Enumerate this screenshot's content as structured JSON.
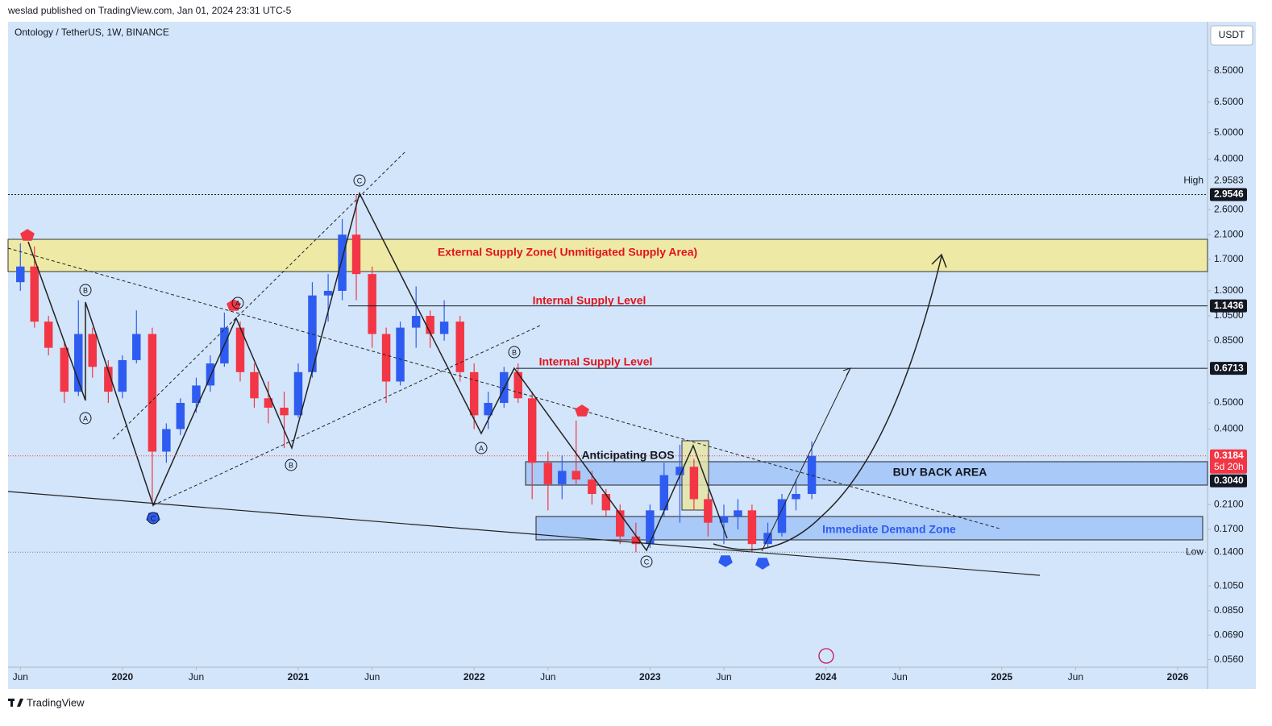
{
  "header": {
    "publisher": "weslad published on TradingView.com, Jan 01, 2024 23:31 UTC-5",
    "footer": "TradingView"
  },
  "chart_data": {
    "type": "candlestick",
    "title": "Ontology / TetherUS, 1W, BINANCE",
    "currency": "USDT",
    "log_scale": true,
    "up_color": "#2f5cf0",
    "down_color": "#f23645",
    "x": [
      2019.42,
      2019.5,
      2019.58,
      2019.67,
      2019.75,
      2019.83,
      2019.92,
      2020.0,
      2020.08,
      2020.17,
      2020.25,
      2020.33,
      2020.42,
      2020.5,
      2020.58,
      2020.67,
      2020.75,
      2020.83,
      2020.92,
      2021.0,
      2021.08,
      2021.17,
      2021.25,
      2021.33,
      2021.42,
      2021.5,
      2021.58,
      2021.67,
      2021.75,
      2021.83,
      2021.92,
      2022.0,
      2022.08,
      2022.17,
      2022.25,
      2022.33,
      2022.42,
      2022.5,
      2022.58,
      2022.67,
      2022.75,
      2022.83,
      2022.92,
      2023.0,
      2023.08,
      2023.17,
      2023.25,
      2023.33,
      2023.42,
      2023.5,
      2023.58,
      2023.67,
      2023.75,
      2023.83,
      2023.92
    ],
    "open": [
      1.4,
      1.6,
      1.0,
      0.8,
      0.55,
      0.9,
      0.68,
      0.55,
      0.72,
      0.9,
      0.33,
      0.4,
      0.5,
      0.58,
      0.7,
      0.95,
      0.65,
      0.52,
      0.48,
      0.45,
      0.65,
      1.25,
      1.3,
      2.1,
      1.5,
      0.9,
      0.6,
      0.95,
      1.05,
      0.9,
      1.0,
      0.65,
      0.45,
      0.5,
      0.65,
      0.52,
      0.3,
      0.25,
      0.28,
      0.26,
      0.23,
      0.2,
      0.16,
      0.15,
      0.2,
      0.27,
      0.29,
      0.22,
      0.18,
      0.19,
      0.2,
      0.15,
      0.165,
      0.22,
      0.23
    ],
    "high": [
      1.95,
      1.9,
      1.05,
      0.85,
      1.2,
      0.95,
      0.72,
      0.75,
      1.1,
      0.95,
      0.42,
      0.52,
      0.62,
      0.75,
      1.08,
      1.0,
      0.7,
      0.6,
      0.55,
      0.7,
      1.4,
      1.5,
      2.4,
      2.95,
      1.6,
      0.95,
      1.0,
      1.35,
      1.1,
      1.2,
      1.05,
      0.7,
      0.55,
      0.68,
      0.7,
      0.55,
      0.33,
      0.32,
      0.43,
      0.28,
      0.24,
      0.21,
      0.18,
      0.21,
      0.3,
      0.35,
      0.31,
      0.23,
      0.21,
      0.22,
      0.21,
      0.18,
      0.23,
      0.26,
      0.36
    ],
    "low": [
      1.3,
      0.95,
      0.75,
      0.5,
      0.53,
      0.62,
      0.5,
      0.52,
      0.7,
      0.21,
      0.3,
      0.38,
      0.46,
      0.55,
      0.68,
      0.6,
      0.48,
      0.42,
      0.34,
      0.44,
      0.62,
      1.0,
      1.2,
      1.2,
      0.8,
      0.5,
      0.58,
      0.8,
      0.8,
      0.85,
      0.6,
      0.4,
      0.4,
      0.48,
      0.5,
      0.22,
      0.2,
      0.22,
      0.25,
      0.21,
      0.19,
      0.15,
      0.14,
      0.145,
      0.19,
      0.18,
      0.2,
      0.16,
      0.15,
      0.17,
      0.14,
      0.145,
      0.16,
      0.2,
      0.22
    ],
    "close": [
      1.6,
      1.0,
      0.8,
      0.55,
      0.9,
      0.68,
      0.55,
      0.72,
      0.9,
      0.33,
      0.4,
      0.5,
      0.58,
      0.7,
      0.95,
      0.65,
      0.52,
      0.48,
      0.45,
      0.65,
      1.25,
      1.3,
      2.1,
      1.5,
      0.9,
      0.6,
      0.95,
      1.05,
      0.9,
      1.0,
      0.65,
      0.45,
      0.5,
      0.65,
      0.52,
      0.3,
      0.25,
      0.28,
      0.26,
      0.23,
      0.2,
      0.16,
      0.15,
      0.2,
      0.27,
      0.29,
      0.22,
      0.18,
      0.19,
      0.2,
      0.15,
      0.165,
      0.22,
      0.23,
      0.3184
    ],
    "xlim": [
      2019.35,
      2026.17
    ],
    "xticks": [
      {
        "value": 2019.42,
        "label": "Jun"
      },
      2020,
      {
        "value": 2020.42,
        "label": "Jun"
      },
      2021,
      {
        "value": 2021.42,
        "label": "Jun"
      },
      2022,
      {
        "value": 2022.42,
        "label": "Jun"
      },
      2023,
      {
        "value": 2023.42,
        "label": "Jun"
      },
      2024,
      {
        "value": 2024.42,
        "label": "Jun"
      },
      2025,
      {
        "value": 2025.42,
        "label": "Jun"
      },
      2026
    ],
    "ylim": [
      0.0525,
      12.9
    ],
    "yticks": [
      {
        "value": 8.5,
        "label": "8.5000"
      },
      {
        "value": 6.5,
        "label": "6.5000"
      },
      {
        "value": 5,
        "label": "5.0000"
      },
      {
        "value": 4,
        "label": "4.0000"
      },
      {
        "value": 2.6,
        "label": "2.6000"
      },
      {
        "value": 2.1,
        "label": "2.1000"
      },
      {
        "value": 1.7,
        "label": "1.7000"
      },
      {
        "value": 1.3,
        "label": "1.3000"
      },
      {
        "value": 1.05,
        "label": "1.0500"
      },
      {
        "value": 0.85,
        "label": "0.8500"
      },
      {
        "value": 0.5,
        "label": "0.5000"
      },
      {
        "value": 0.4,
        "label": "0.4000"
      },
      {
        "value": 0.21,
        "label": "0.2100"
      },
      {
        "value": 0.17,
        "label": "0.1700"
      },
      {
        "value": 0.105,
        "label": "0.1050"
      },
      {
        "value": 0.085,
        "label": "0.0850"
      },
      {
        "value": 0.069,
        "label": "0.0690"
      },
      {
        "value": 0.056,
        "label": "0.0560"
      }
    ],
    "price_levels": [
      {
        "name": "High",
        "value": 2.9583,
        "label": "2.9583"
      },
      {
        "value": 2.9546,
        "label": "2.9546"
      },
      {
        "value": 1.1436,
        "label": "1.1436"
      },
      {
        "value": 0.6713,
        "label": "0.6713"
      },
      {
        "value": 0.3184,
        "label": "0.3184",
        "countdown": "5d 20h"
      },
      {
        "value": 0.304,
        "label": "0.3040"
      },
      {
        "name": "Low",
        "value": 0.14,
        "label": "0.1400"
      }
    ],
    "annotations": [
      "External Supply Zone( Unmitigated Supply Area)",
      "Internal Supply Level",
      "Internal Supply Level",
      "Anticipating BOS",
      "BUY BACK AREA",
      "Immediate Demand Zone"
    ],
    "wave_labels": [
      "B",
      "A",
      "C",
      "A",
      "B",
      "C",
      "B",
      "A",
      "C"
    ]
  }
}
